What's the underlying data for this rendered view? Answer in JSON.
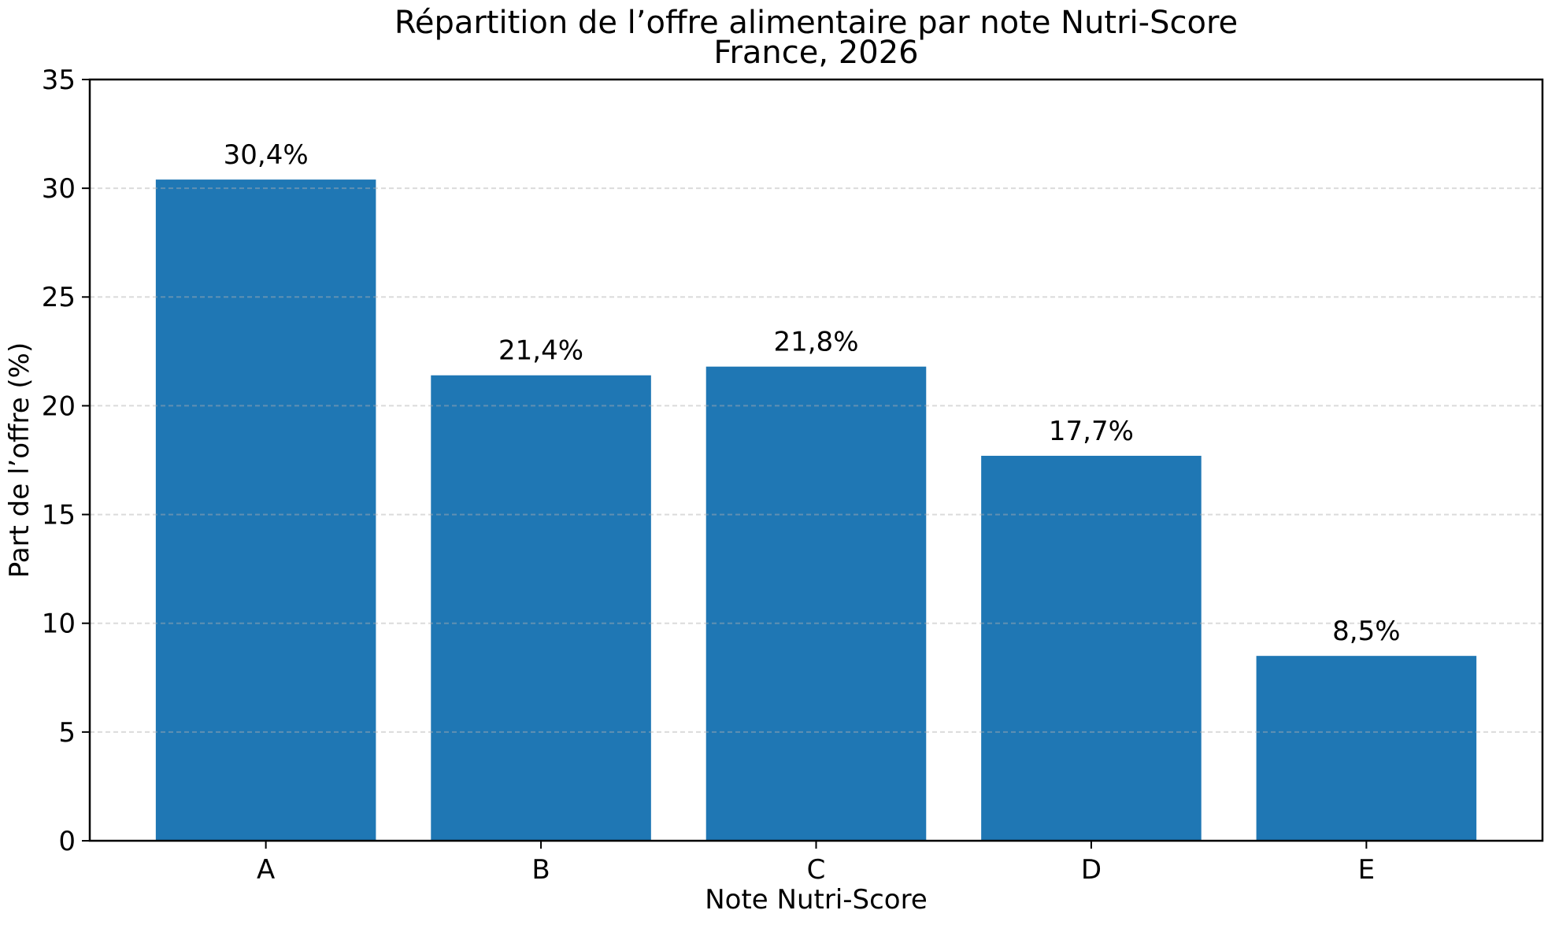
{
  "chart_data": {
    "type": "bar",
    "title": "Répartition de l’offre alimentaire par note Nutri-Score",
    "subtitle": "France, 2026",
    "categories": [
      "A",
      "B",
      "C",
      "D",
      "E"
    ],
    "values": [
      30.4,
      21.4,
      21.8,
      17.7,
      8.5
    ],
    "value_labels": [
      "30,4%",
      "21,4%",
      "21,8%",
      "17,7%",
      "8,5%"
    ],
    "xlabel": "Note Nutri-Score",
    "ylabel": "Part de l’offre (%)",
    "ylim": [
      0,
      35
    ],
    "yticks": [
      0,
      5,
      10,
      15,
      20,
      25,
      30,
      35
    ],
    "grid": "horizontal-dashed-over-bars",
    "legend": "none",
    "bar_color": "#1f77b4",
    "grid_color": "#b0b0b0",
    "axis_color": "#000000",
    "background": "#ffffff"
  }
}
